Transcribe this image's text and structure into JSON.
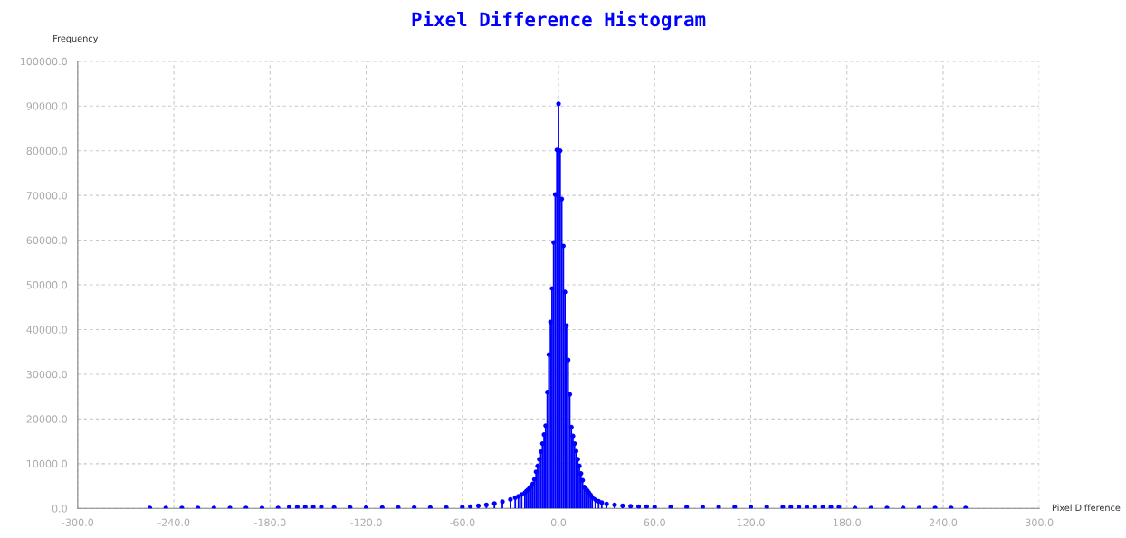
{
  "chart_data": {
    "type": "lollipop",
    "title": "Pixel Difference Histogram",
    "xlabel": "Pixel Difference",
    "ylabel": "Frequency",
    "x": [
      -255,
      -245,
      -235,
      -225,
      -215,
      -205,
      -195,
      -185,
      -175,
      -168,
      -163,
      -158,
      -153,
      -148,
      -140,
      -130,
      -120,
      -110,
      -100,
      -90,
      -80,
      -70,
      -60,
      -55,
      -50,
      -45,
      -40,
      -35,
      -30,
      -27,
      -25,
      -23,
      -21,
      -20,
      -19,
      -18,
      -17,
      -16,
      -15,
      -14,
      -13,
      -12,
      -11,
      -10,
      -9,
      -8,
      -7,
      -6,
      -5,
      -4,
      -3,
      -2,
      -1,
      0,
      1,
      2,
      3,
      4,
      5,
      6,
      7,
      8,
      9,
      10,
      11,
      12,
      13,
      14,
      15,
      16,
      17,
      18,
      19,
      20,
      21,
      23,
      25,
      27,
      30,
      35,
      40,
      45,
      50,
      55,
      60,
      70,
      80,
      90,
      100,
      110,
      120,
      130,
      140,
      145,
      150,
      155,
      160,
      165,
      170,
      175,
      185,
      195,
      205,
      215,
      225,
      235,
      245,
      254
    ],
    "values": [
      100,
      100,
      100,
      100,
      100,
      100,
      100,
      100,
      100,
      300,
      300,
      300,
      300,
      300,
      200,
      200,
      200,
      200,
      200,
      200,
      200,
      200,
      300,
      400,
      600,
      800,
      1100,
      1500,
      2000,
      2400,
      2700,
      3100,
      3500,
      3900,
      4200,
      4600,
      5000,
      5500,
      6500,
      8200,
      9500,
      11000,
      12700,
      14500,
      16500,
      18500,
      26000,
      34400,
      41700,
      49200,
      59500,
      70200,
      80200,
      90500,
      80000,
      69200,
      58700,
      48400,
      40900,
      33200,
      25500,
      18200,
      16200,
      14500,
      12800,
      11000,
      9500,
      7800,
      6300,
      4800,
      4400,
      4000,
      3500,
      3000,
      2500,
      2000,
      1600,
      1300,
      1000,
      800,
      600,
      500,
      400,
      400,
      300,
      300,
      300,
      300,
      300,
      300,
      300,
      300,
      300,
      300,
      300,
      300,
      300,
      300,
      300,
      300,
      100,
      100,
      100,
      100,
      100,
      100,
      100,
      100
    ],
    "color": "#0000ff",
    "marker": "circle",
    "xlim": [
      -300,
      300
    ],
    "xticks": [
      {
        "value": -300,
        "label": "-300.0"
      },
      {
        "value": -240,
        "label": "-240.0"
      },
      {
        "value": -180,
        "label": "-180.0"
      },
      {
        "value": -120,
        "label": "-120.0"
      },
      {
        "value": -60,
        "label": "-60.0"
      },
      {
        "value": 0,
        "label": "0.0"
      },
      {
        "value": 60,
        "label": "60.0"
      },
      {
        "value": 120,
        "label": "120.0"
      },
      {
        "value": 180,
        "label": "180.0"
      },
      {
        "value": 240,
        "label": "240.0"
      },
      {
        "value": 300,
        "label": "300.0"
      }
    ],
    "ylim": [
      0,
      100000
    ],
    "yticks": [
      {
        "value": 0,
        "label": "0.0"
      },
      {
        "value": 10000,
        "label": "10000.0"
      },
      {
        "value": 20000,
        "label": "20000.0"
      },
      {
        "value": 30000,
        "label": "30000.0"
      },
      {
        "value": 40000,
        "label": "40000.0"
      },
      {
        "value": 50000,
        "label": "50000.0"
      },
      {
        "value": 60000,
        "label": "60000.0"
      },
      {
        "value": 70000,
        "label": "70000.0"
      },
      {
        "value": 80000,
        "label": "80000.0"
      },
      {
        "value": 90000,
        "label": "90000.0"
      },
      {
        "value": 100000,
        "label": "100000.0"
      }
    ],
    "grid": true
  }
}
